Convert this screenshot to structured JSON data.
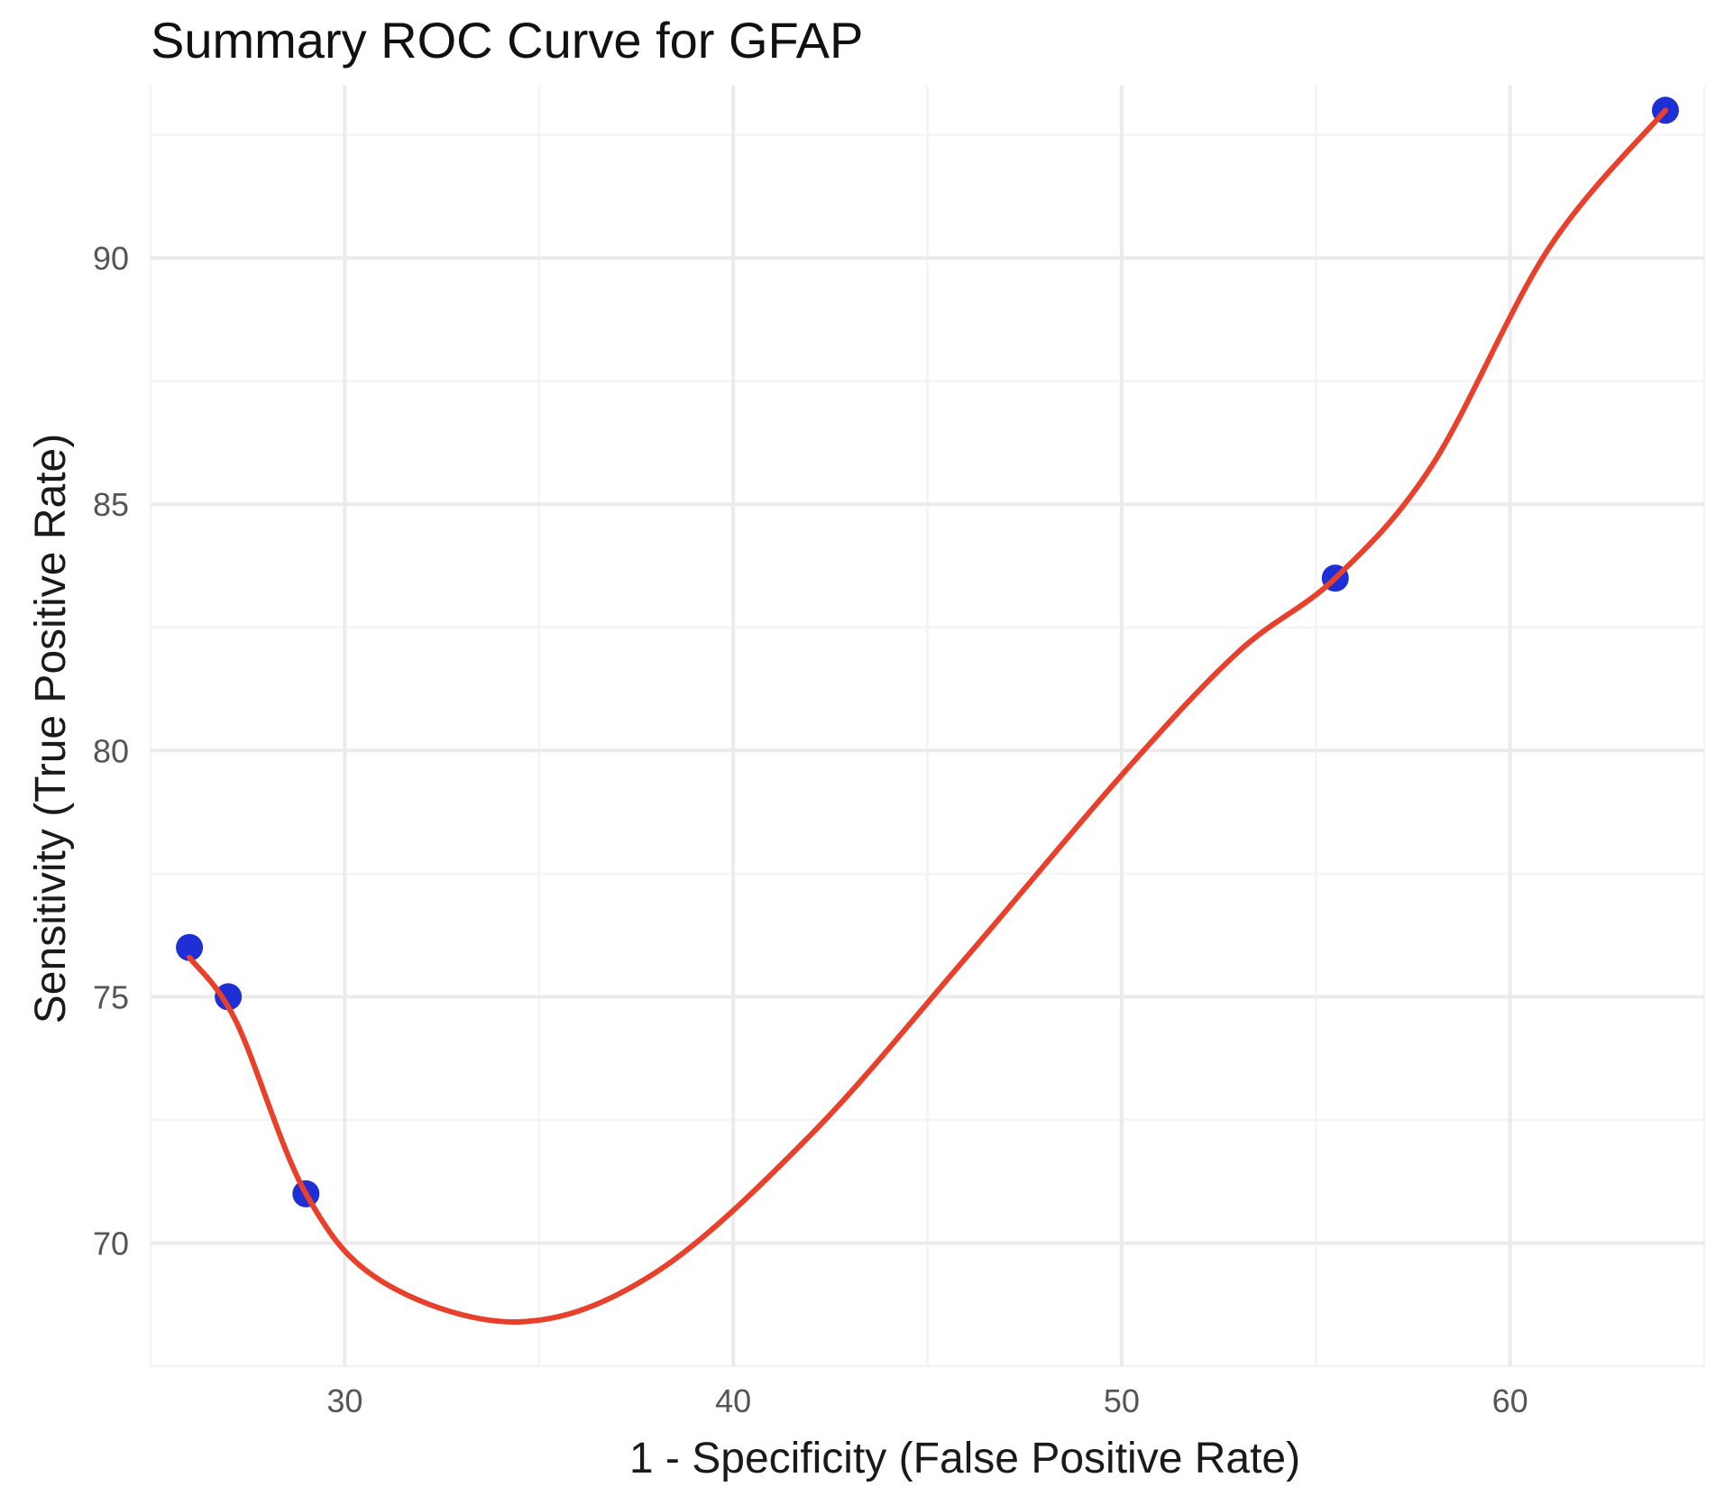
{
  "chart_data": {
    "type": "line",
    "title": "Summary ROC Curve for GFAP",
    "xlabel": "1 - Specificity (False Positive Rate)",
    "ylabel": "Sensitivity (True Positive Rate)",
    "xlim": [
      25,
      65
    ],
    "ylim": [
      67.5,
      93.5
    ],
    "x_ticks": [
      30,
      40,
      50,
      60
    ],
    "y_ticks": [
      70,
      75,
      80,
      85,
      90
    ],
    "x_minor_ticks": [
      25,
      35,
      45,
      55,
      65
    ],
    "y_minor_ticks": [
      67.5,
      72.5,
      77.5,
      82.5,
      87.5,
      92.5
    ],
    "grid": true,
    "series": [
      {
        "name": "Study estimates",
        "kind": "scatter",
        "color": "#1f2fd6",
        "x": [
          26,
          27,
          29,
          55.5,
          64
        ],
        "y": [
          76,
          75,
          71,
          83.5,
          93
        ]
      },
      {
        "name": "Summary ROC curve",
        "kind": "line",
        "color": "#e8402a",
        "x": [
          26,
          27.2,
          29,
          31,
          34.5,
          38,
          42,
          46,
          50,
          53,
          55.5,
          58,
          61,
          64
        ],
        "y": [
          75.8,
          74.5,
          71,
          69.2,
          68.4,
          69.4,
          72.2,
          75.8,
          79.5,
          82,
          83.5,
          85.8,
          90.2,
          93
        ]
      }
    ]
  }
}
